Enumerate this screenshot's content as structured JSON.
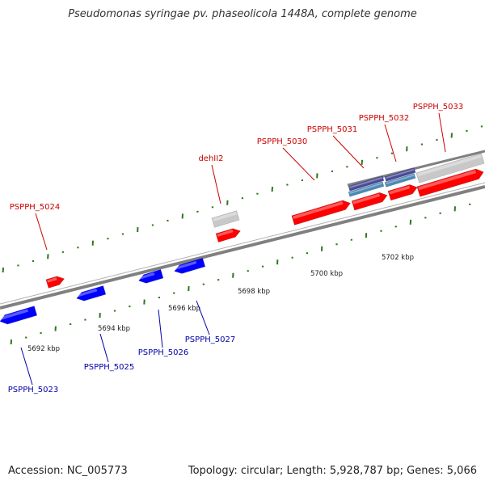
{
  "title": "Pseudomonas syringae pv. phaseolicola 1448A, complete genome",
  "footer": {
    "accession": "Accession: NC_005773",
    "summary": "Topology: circular; Length: 5,928,787 bp; Genes: 5,066"
  },
  "scale_labels": [
    "5692 kbp",
    "5694 kbp",
    "5696 kbp",
    "5698 kbp",
    "5700 kbp",
    "5702 kbp"
  ],
  "colors": {
    "forward_gene": "#ff0000",
    "reverse_gene": "#0000ff",
    "other_feature": "#c8c8c8",
    "cds_dark": "#4a4a9a",
    "cds_light": "#4a8ab8",
    "tick": "#2a7a1a",
    "backbone": "#808080",
    "label_forward": "#cc0000",
    "label_reverse": "#0000aa"
  },
  "gene_labels": {
    "forward": [
      "PSPPH_5024",
      "dehII2",
      "PSPPH_5030",
      "PSPPH_5031",
      "PSPPH_5032",
      "PSPPH_5033"
    ],
    "reverse": [
      "PSPPH_5023",
      "PSPPH_5025",
      "PSPPH_5026",
      "PSPPH_5027"
    ]
  }
}
